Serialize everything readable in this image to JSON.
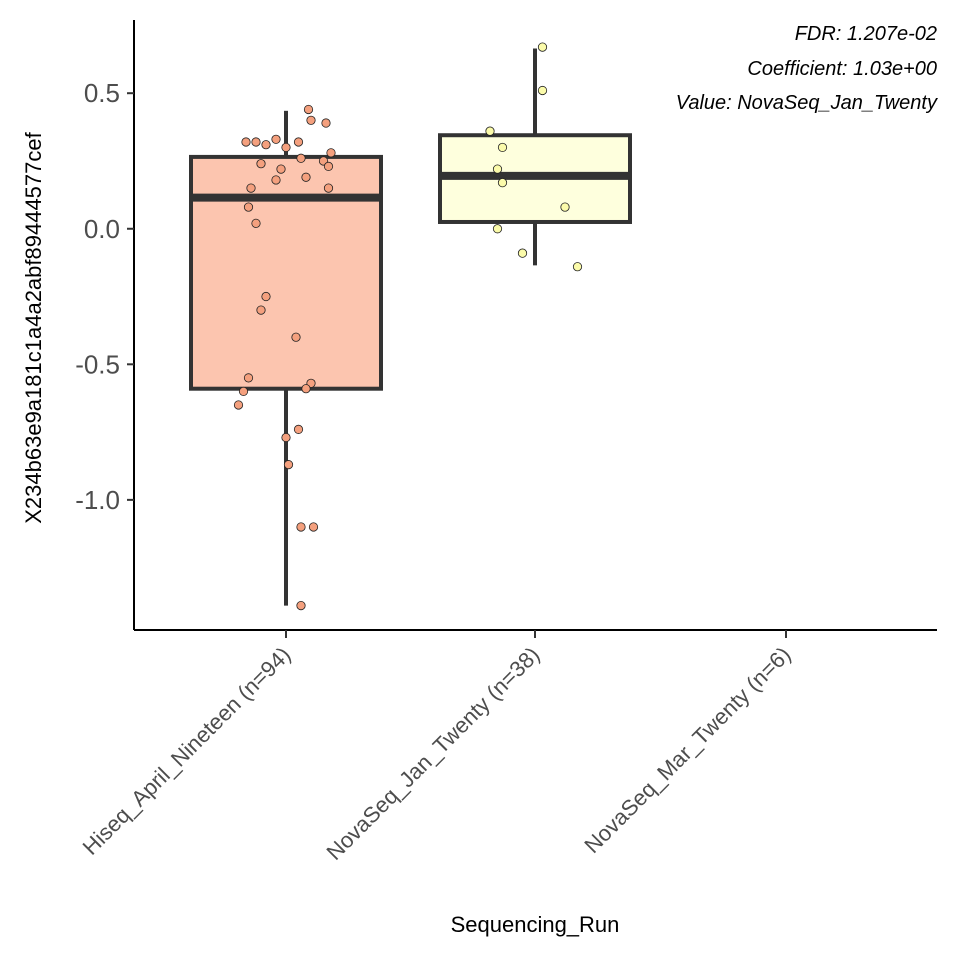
{
  "chart_data": {
    "type": "box",
    "xlabel": "Sequencing_Run",
    "ylabel": "X234b63e9a181c1a4a2abf89444577cef",
    "ylim": [
      -1.48,
      0.77
    ],
    "yticks": [
      0.5,
      0.0,
      -0.5,
      -1.0
    ],
    "ytick_labels": [
      "0.5",
      "0.0",
      "-0.5",
      "-1.0"
    ],
    "categories": [
      "Hiseq_April_Nineteen (n=94)",
      "NovaSeq_Jan_Twenty (n=38)",
      "NovaSeq_Mar_Twenty (n=6)"
    ],
    "annotations": [
      "FDR: 1.207e-02",
      "Coefficient: 1.03e+00",
      "Value: NovaSeq_Jan_Twenty"
    ],
    "grid": false,
    "boxes": [
      {
        "category_index": 0,
        "fill": "#FCC5AF",
        "point_fill": "#F4A07E",
        "q1": -0.59,
        "median": 0.115,
        "q3": 0.265,
        "whisker_low": -1.39,
        "whisker_high": 0.435,
        "points": [
          [
            -0.16,
            0.32
          ],
          [
            -0.12,
            0.32
          ],
          [
            -0.08,
            0.31
          ],
          [
            -0.04,
            0.33
          ],
          [
            0.0,
            0.3
          ],
          [
            0.05,
            0.32
          ],
          [
            0.09,
            0.44
          ],
          [
            0.1,
            0.4
          ],
          [
            0.16,
            0.39
          ],
          [
            0.18,
            0.28
          ],
          [
            0.15,
            0.25
          ],
          [
            0.17,
            0.23
          ],
          [
            0.06,
            0.26
          ],
          [
            -0.02,
            0.22
          ],
          [
            -0.1,
            0.24
          ],
          [
            0.08,
            0.19
          ],
          [
            -0.04,
            0.18
          ],
          [
            -0.14,
            0.15
          ],
          [
            0.17,
            0.15
          ],
          [
            -0.15,
            0.08
          ],
          [
            -0.12,
            0.02
          ],
          [
            -0.08,
            -0.25
          ],
          [
            -0.1,
            -0.3
          ],
          [
            0.04,
            -0.4
          ],
          [
            -0.15,
            -0.55
          ],
          [
            -0.17,
            -0.6
          ],
          [
            0.1,
            -0.57
          ],
          [
            0.08,
            -0.59
          ],
          [
            -0.19,
            -0.65
          ],
          [
            0.05,
            -0.74
          ],
          [
            0.0,
            -0.77
          ],
          [
            0.01,
            -0.87
          ],
          [
            0.06,
            -1.1
          ],
          [
            0.11,
            -1.1
          ],
          [
            0.06,
            -1.39
          ]
        ]
      },
      {
        "category_index": 1,
        "fill": "#FEFFDD",
        "point_fill": "#FBFBAA",
        "q1": 0.025,
        "median": 0.195,
        "q3": 0.345,
        "whisker_low": -0.135,
        "whisker_high": 0.665,
        "points": [
          [
            0.03,
            0.67
          ],
          [
            0.03,
            0.51
          ],
          [
            -0.18,
            0.36
          ],
          [
            -0.13,
            0.3
          ],
          [
            -0.15,
            0.22
          ],
          [
            -0.13,
            0.17
          ],
          [
            0.12,
            0.08
          ],
          [
            -0.15,
            0.0
          ],
          [
            -0.05,
            -0.09
          ],
          [
            0.17,
            -0.14
          ]
        ]
      }
    ]
  }
}
